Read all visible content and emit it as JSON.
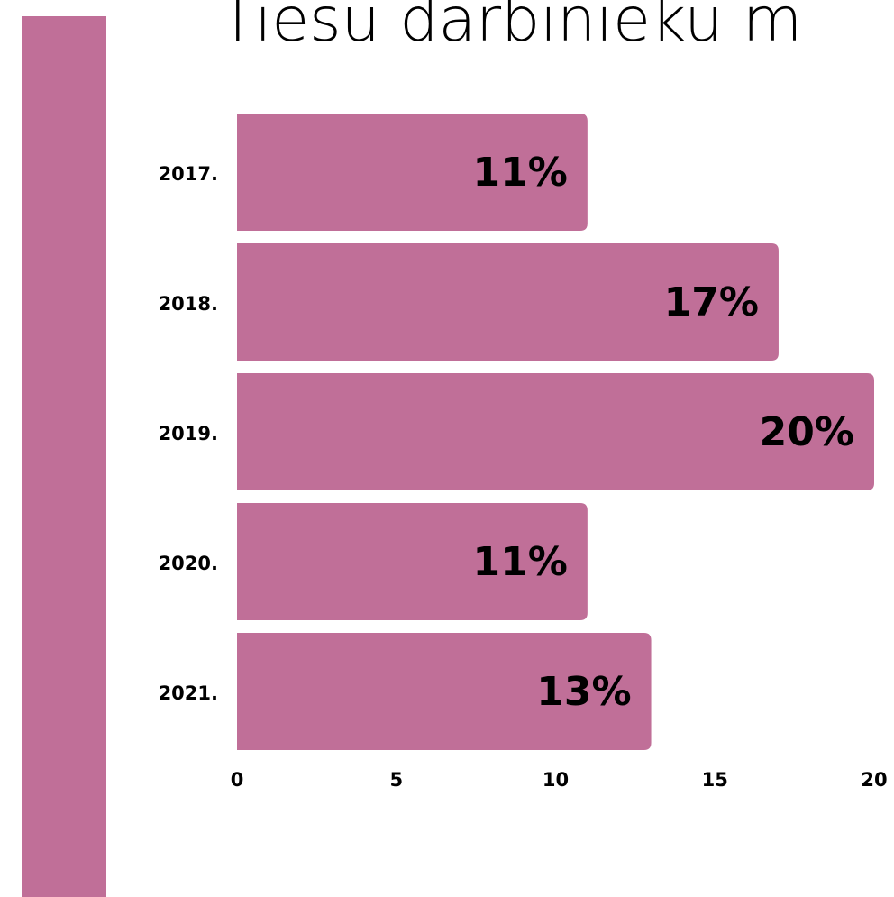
{
  "chart_data": {
    "type": "barh",
    "title": "Tiesu darbinieku m",
    "categories": [
      "2017.",
      "2018.",
      "2019.",
      "2020.",
      "2021."
    ],
    "values": [
      11,
      17,
      20,
      11,
      13
    ],
    "value_labels": [
      "11%",
      "17%",
      "20%",
      "11%",
      "13%"
    ],
    "color": "#c06f98",
    "xlim": [
      0,
      20
    ],
    "xticks": [
      0,
      5,
      10,
      15,
      20
    ]
  }
}
